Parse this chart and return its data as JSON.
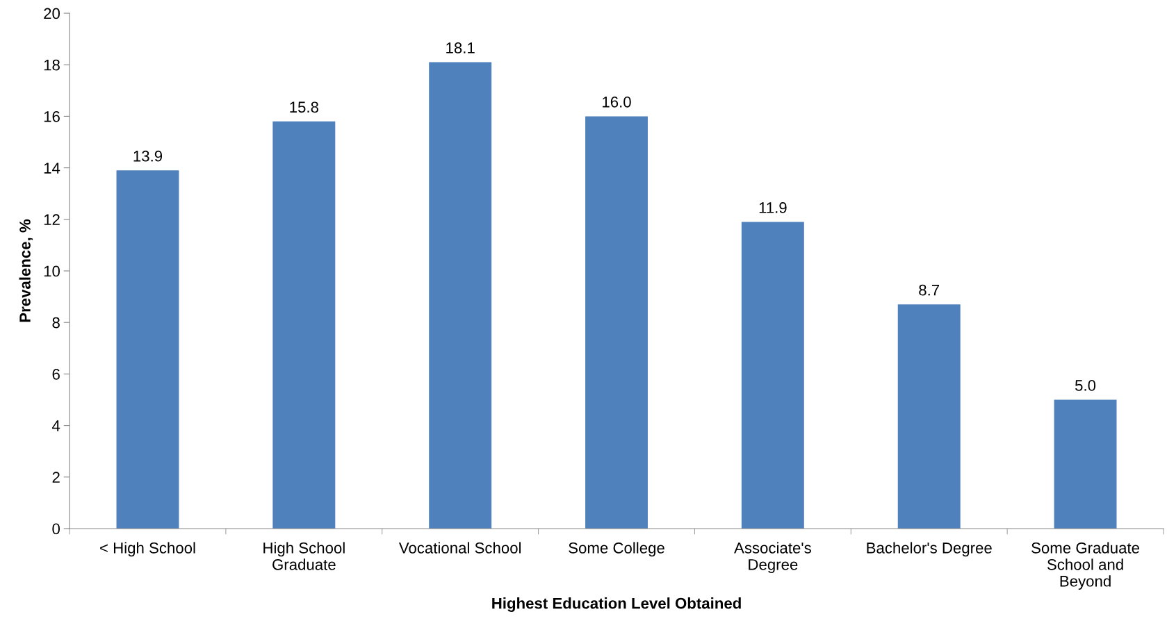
{
  "chart_data": {
    "type": "bar",
    "xlabel": "Highest Education Level Obtained",
    "ylabel": "Prevalence, %",
    "categories": [
      "< High School",
      "High School\nGraduate",
      "Vocational School",
      "Some College",
      "Associate's\nDegree",
      "Bachelor's Degree",
      "Some Graduate\nSchool and\nBeyond"
    ],
    "values": [
      13.9,
      15.8,
      18.1,
      16.0,
      11.9,
      8.7,
      5.0
    ],
    "color": "#4f81bd",
    "ylim": [
      0,
      20
    ],
    "yticks": [
      0,
      2,
      4,
      6,
      8,
      10,
      12,
      14,
      16,
      18,
      20
    ],
    "grid": false,
    "value_labels": [
      "13.9",
      "15.8",
      "18.1",
      "16.0",
      "11.9",
      "8.7",
      "5.0"
    ]
  }
}
